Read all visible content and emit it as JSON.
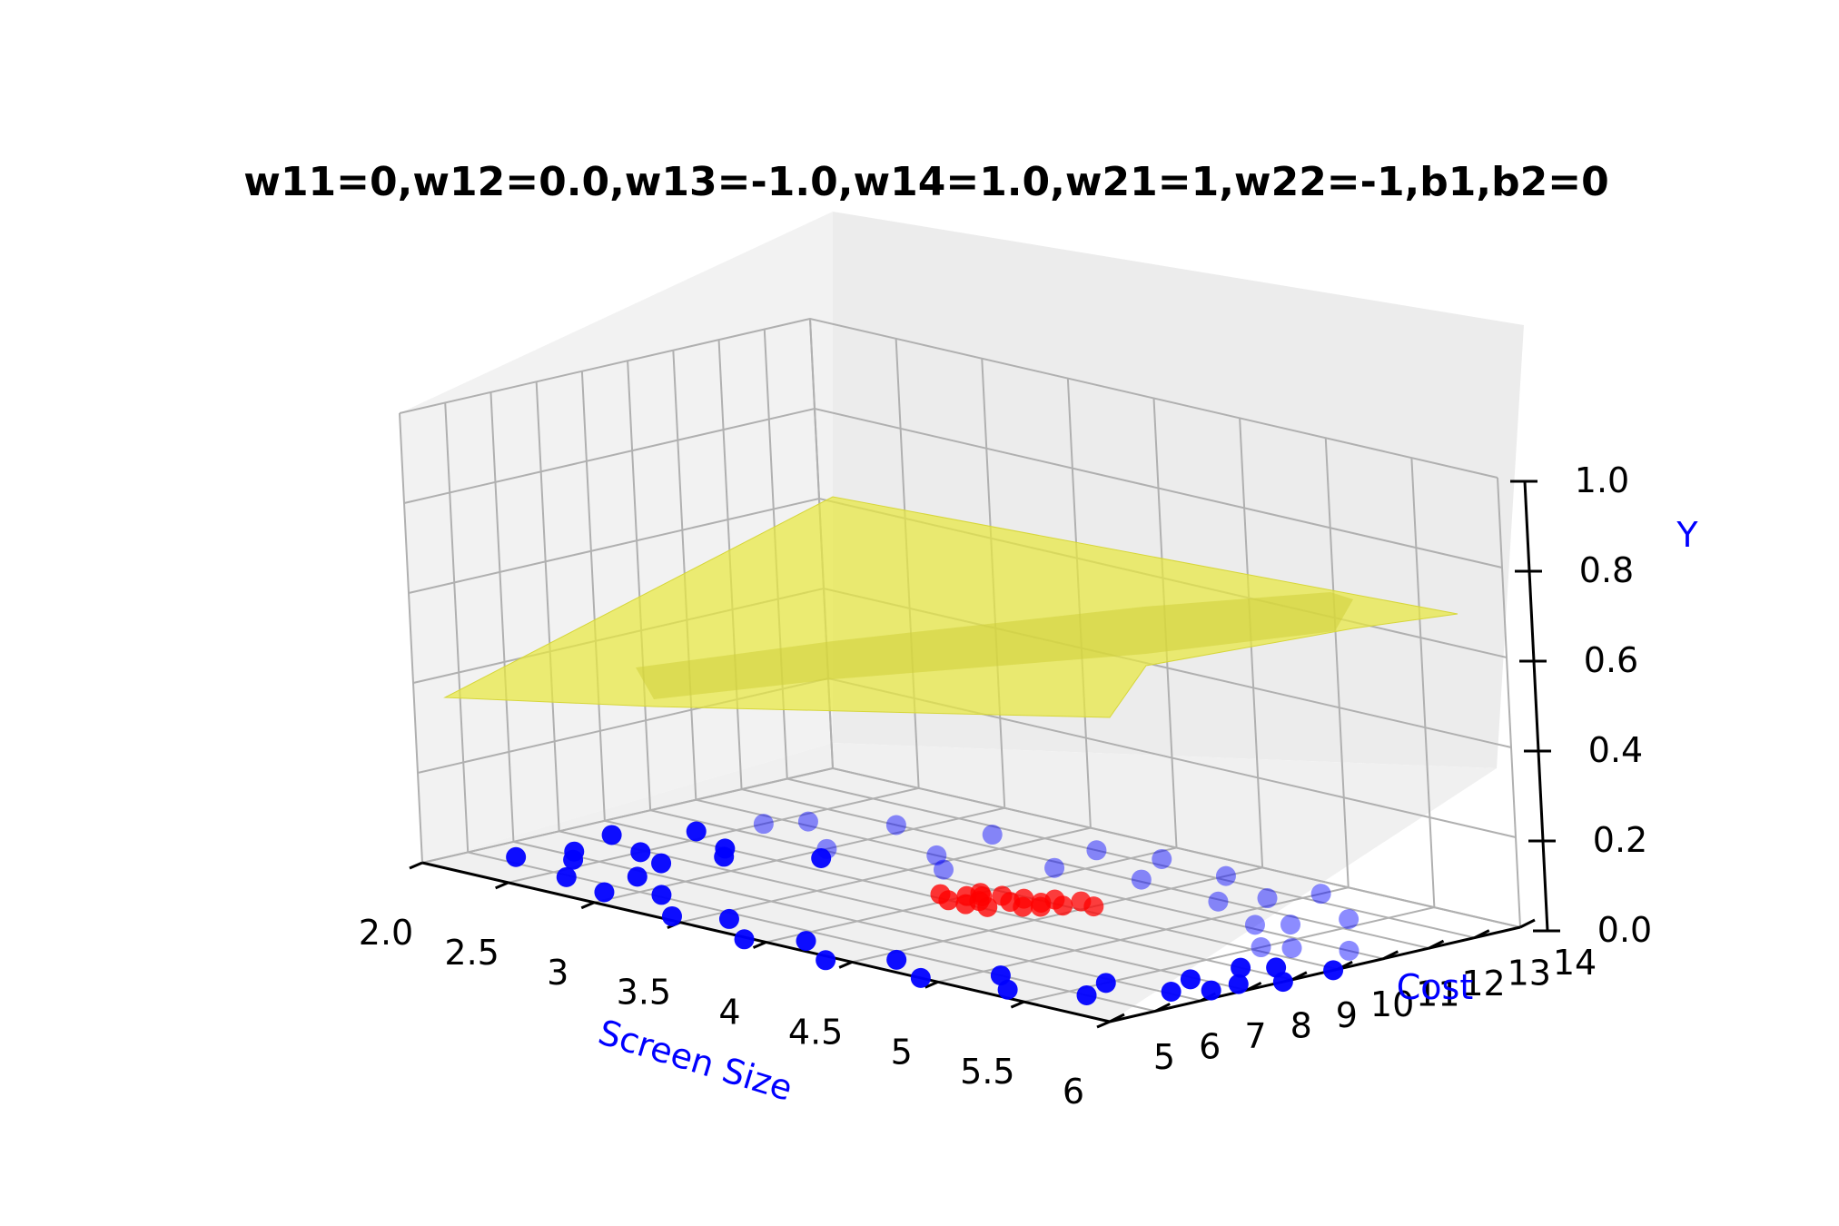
{
  "chart_data": {
    "type": "scatter",
    "subtype": "3d-scatter-with-surface",
    "title": "w11=0,w12=0.0,w13=-1.0,w14=1.0,w21=1,w22=-1,b1,b2=0",
    "xlabel": "Screen Size",
    "ylabel": "Cost",
    "zlabel": "Y",
    "xlim": [
      2.0,
      6.0
    ],
    "ylim": [
      5,
      14
    ],
    "zlim": [
      0.0,
      1.0
    ],
    "x_ticks": [
      "2.0",
      "2.5",
      "3",
      "3.5",
      "4",
      "4.5",
      "5",
      "5.5",
      "6"
    ],
    "y_ticks": [
      "5",
      "6",
      "7",
      "8",
      "9",
      "10",
      "11",
      "12",
      "13",
      "14"
    ],
    "z_ticks": [
      "0.0",
      "0.2",
      "0.4",
      "0.6",
      "0.8",
      "1.0"
    ],
    "grid": true,
    "colors": {
      "blue_points": "#0000ff",
      "red_points": "#ff0000",
      "surface": "#e8e840",
      "pane": "#f2f2f2",
      "grid": "#b0b0b0",
      "axis_label": "#0000ff"
    },
    "series": [
      {
        "color": "blue",
        "points": [
          [
            2.2,
            6.3,
            0
          ],
          [
            2.3,
            7.2,
            0
          ],
          [
            2.2,
            8.4,
            0
          ],
          [
            2.4,
            9.5,
            0
          ],
          [
            2.5,
            10.6,
            0
          ],
          [
            2.6,
            11.2,
            0
          ],
          [
            2.9,
            12.0,
            0
          ],
          [
            3.3,
            12.6,
            0
          ],
          [
            3.8,
            13.0,
            0
          ],
          [
            4.1,
            13.3,
            0
          ],
          [
            4.5,
            13.2,
            0
          ],
          [
            4.9,
            12.6,
            0
          ],
          [
            5.3,
            11.6,
            0
          ],
          [
            5.6,
            10.5,
            0
          ],
          [
            5.8,
            9.4,
            0
          ],
          [
            5.9,
            8.2,
            0
          ],
          [
            5.8,
            7.1,
            0
          ],
          [
            5.6,
            6.0,
            0
          ],
          [
            5.3,
            5.4,
            0
          ],
          [
            4.9,
            5.0,
            0
          ],
          [
            4.4,
            4.8,
            0
          ],
          [
            3.9,
            4.9,
            0
          ],
          [
            3.4,
            5.2,
            0
          ],
          [
            2.9,
            5.6,
            0
          ],
          [
            2.6,
            5.9,
            0
          ],
          [
            2.4,
            6.8,
            0
          ],
          [
            2.5,
            7.9,
            0
          ],
          [
            2.7,
            9.0,
            0
          ],
          [
            3.0,
            10.1,
            0
          ],
          [
            3.4,
            11.0,
            0
          ],
          [
            3.9,
            11.7,
            0
          ],
          [
            4.3,
            12.1,
            0
          ],
          [
            4.8,
            11.9,
            0
          ],
          [
            5.2,
            11.2,
            0
          ],
          [
            5.5,
            10.2,
            0
          ],
          [
            5.7,
            9.0,
            0
          ],
          [
            5.7,
            7.9,
            0
          ],
          [
            5.5,
            6.8,
            0
          ],
          [
            5.1,
            6.0,
            0
          ],
          [
            4.6,
            5.6,
            0
          ],
          [
            4.1,
            5.5,
            0
          ],
          [
            3.6,
            5.7,
            0
          ],
          [
            3.1,
            6.1,
            0
          ],
          [
            2.8,
            6.7,
            0
          ],
          [
            2.7,
            7.6,
            0
          ],
          [
            2.8,
            8.6,
            0
          ],
          [
            3.1,
            9.6,
            0
          ],
          [
            3.6,
            10.4,
            0
          ],
          [
            5.0,
            13.4,
            0
          ],
          [
            5.4,
            12.5,
            0
          ],
          [
            5.8,
            11.0,
            0
          ],
          [
            6.0,
            9.9,
            0
          ],
          [
            6.0,
            8.8,
            0
          ],
          [
            5.9,
            7.6,
            0
          ]
        ]
      },
      {
        "color": "red",
        "points": [
          [
            4.0,
            9.0,
            0
          ],
          [
            4.1,
            9.3,
            0
          ],
          [
            4.2,
            9.6,
            0
          ],
          [
            4.3,
            9.9,
            0
          ],
          [
            4.1,
            9.8,
            0
          ],
          [
            4.0,
            9.4,
            0
          ],
          [
            4.2,
            9.1,
            0
          ],
          [
            4.3,
            9.5,
            0
          ],
          [
            4.4,
            10.0,
            0
          ],
          [
            4.5,
            10.3,
            0
          ],
          [
            4.4,
            10.4,
            0
          ],
          [
            4.3,
            10.2,
            0
          ],
          [
            4.0,
            9.7,
            0
          ],
          [
            3.9,
            9.2,
            0
          ],
          [
            4.1,
            9.0,
            0
          ],
          [
            4.2,
            9.9,
            0
          ],
          [
            4.35,
            9.7,
            0
          ],
          [
            4.05,
            9.55,
            0
          ]
        ]
      }
    ]
  }
}
